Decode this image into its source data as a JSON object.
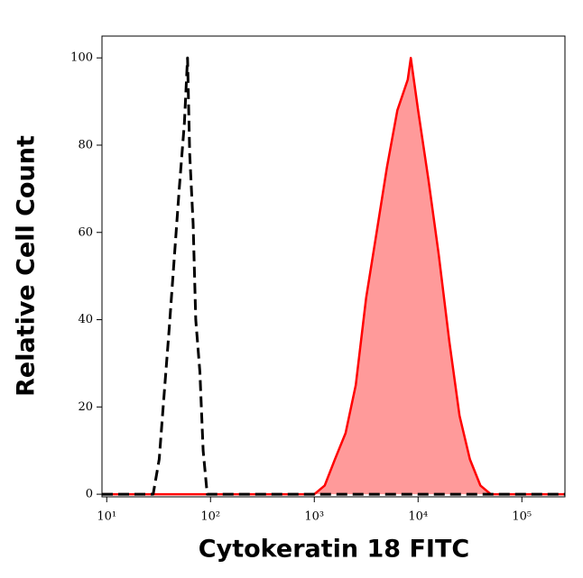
{
  "chart_data": {
    "type": "histogram-line",
    "x_label": "Cytokeratin 18 FITC",
    "y_label": "Relative Cell Count",
    "xscale": "log",
    "xlim": [
      9,
      260000
    ],
    "ylim": [
      -0.6,
      105
    ],
    "xticks": [
      {
        "value": 10,
        "label": "10¹"
      },
      {
        "value": 100,
        "label": "10²"
      },
      {
        "value": 1000,
        "label": "10³"
      },
      {
        "value": 10000,
        "label": "10⁴"
      },
      {
        "value": 100000,
        "label": "10⁵"
      }
    ],
    "yticks": [
      0,
      20,
      40,
      60,
      80,
      100
    ],
    "series": [
      {
        "color": "#000000",
        "style": "dashed",
        "x": [
          9,
          28,
          32,
          35,
          40,
          45,
          50,
          56,
          60,
          63,
          68,
          72,
          79,
          85,
          93,
          260000
        ],
        "values": [
          0,
          0,
          8,
          20,
          38,
          55,
          70,
          85,
          100,
          78,
          62,
          40,
          28,
          10,
          0,
          0
        ]
      },
      {
        "color": "#ff0000",
        "style": "solid",
        "fill": "#ff9a9a",
        "x": [
          9,
          1000,
          1260,
          1580,
          2000,
          2510,
          3160,
          3980,
          5010,
          6310,
          7940,
          8510,
          10000,
          12600,
          15800,
          20000,
          25100,
          31600,
          39800,
          50100,
          260000
        ],
        "values": [
          0,
          0,
          2,
          8,
          14,
          25,
          45,
          60,
          75,
          88,
          95,
          100,
          88,
          72,
          55,
          35,
          18,
          8,
          2,
          0,
          0
        ]
      }
    ]
  }
}
